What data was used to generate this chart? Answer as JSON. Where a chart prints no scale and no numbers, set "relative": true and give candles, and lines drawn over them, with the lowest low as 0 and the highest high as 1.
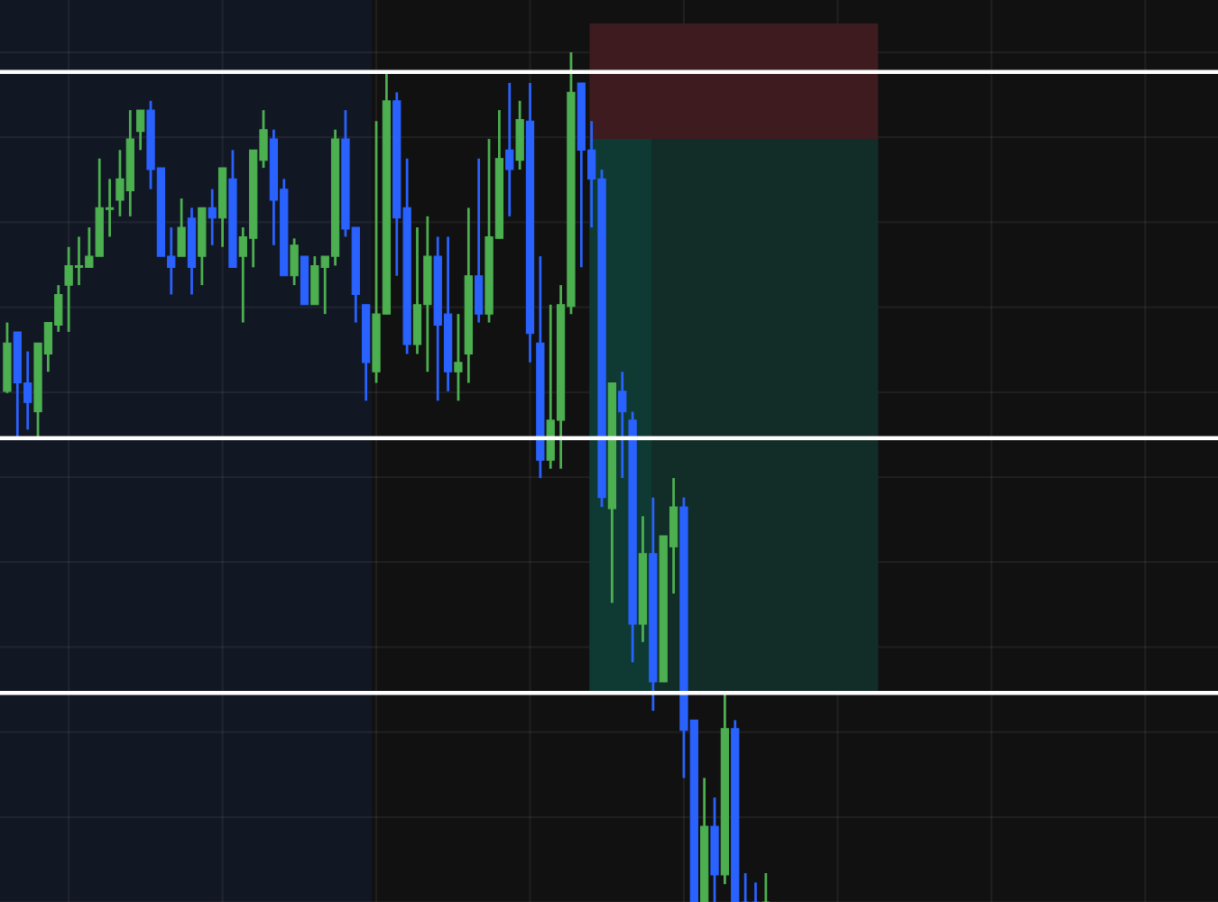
{
  "chart_data": {
    "type": "candlestick",
    "relative": true,
    "tick_labels": false,
    "grid": true,
    "categories": [
      null,
      null,
      null,
      null,
      null,
      null,
      null,
      null,
      null,
      null,
      null,
      null,
      null,
      null,
      null,
      null,
      null,
      null,
      null,
      null,
      null,
      null,
      null,
      null,
      null,
      null,
      null,
      null,
      null,
      null,
      null,
      null,
      null,
      null,
      null,
      null,
      null,
      null,
      null,
      null,
      null,
      null,
      null,
      null,
      null,
      null,
      null,
      null,
      null,
      null,
      null,
      null,
      null,
      null,
      null,
      null,
      null,
      null,
      null,
      null,
      null,
      null,
      null,
      null,
      null,
      null,
      null,
      null,
      null,
      null,
      null,
      null,
      null,
      null,
      null
    ],
    "ohlc": [
      [
        0.601,
        0.682,
        0.599,
        0.658
      ],
      [
        0.671,
        0.671,
        0.546,
        0.611
      ],
      [
        0.611,
        0.648,
        0.556,
        0.588
      ],
      [
        0.577,
        0.658,
        0.546,
        0.658
      ],
      [
        0.645,
        0.682,
        0.624,
        0.682
      ],
      [
        0.679,
        0.726,
        0.671,
        0.715
      ],
      [
        0.726,
        0.771,
        0.671,
        0.749
      ],
      [
        0.747,
        0.783,
        0.726,
        0.749
      ],
      [
        0.747,
        0.794,
        0.747,
        0.76
      ],
      [
        0.76,
        0.875,
        0.76,
        0.817
      ],
      [
        0.815,
        0.851,
        0.783,
        0.817
      ],
      [
        0.826,
        0.885,
        0.807,
        0.851
      ],
      [
        0.837,
        0.932,
        0.807,
        0.898
      ],
      [
        0.907,
        0.932,
        0.885,
        0.932
      ],
      [
        0.932,
        0.943,
        0.839,
        0.862
      ],
      [
        0.864,
        0.864,
        0.76,
        0.76
      ],
      [
        0.76,
        0.794,
        0.715,
        0.747
      ],
      [
        0.76,
        0.828,
        0.76,
        0.794
      ],
      [
        0.805,
        0.817,
        0.715,
        0.747
      ],
      [
        0.76,
        0.817,
        0.726,
        0.817
      ],
      [
        0.817,
        0.839,
        0.773,
        0.805
      ],
      [
        0.805,
        0.864,
        0.771,
        0.864
      ],
      [
        0.851,
        0.885,
        0.747,
        0.747
      ],
      [
        0.76,
        0.794,
        0.682,
        0.783
      ],
      [
        0.781,
        0.885,
        0.747,
        0.885
      ],
      [
        0.873,
        0.932,
        0.864,
        0.909
      ],
      [
        0.898,
        0.909,
        0.773,
        0.826
      ],
      [
        0.839,
        0.851,
        0.737,
        0.737
      ],
      [
        0.737,
        0.781,
        0.726,
        0.773
      ],
      [
        0.76,
        0.76,
        0.703,
        0.703
      ],
      [
        0.703,
        0.76,
        0.703,
        0.749
      ],
      [
        0.747,
        0.76,
        0.692,
        0.76
      ],
      [
        0.76,
        0.909,
        0.749,
        0.898
      ],
      [
        0.898,
        0.932,
        0.783,
        0.792
      ],
      [
        0.794,
        0.794,
        0.682,
        0.715
      ],
      [
        0.703,
        0.703,
        0.59,
        0.635
      ],
      [
        0.624,
        0.919,
        0.611,
        0.692
      ],
      [
        0.692,
        0.977,
        0.692,
        0.943
      ],
      [
        0.943,
        0.953,
        0.737,
        0.805
      ],
      [
        0.817,
        0.875,
        0.645,
        0.656
      ],
      [
        0.656,
        0.794,
        0.645,
        0.703
      ],
      [
        0.703,
        0.807,
        0.624,
        0.76
      ],
      [
        0.76,
        0.783,
        0.59,
        0.679
      ],
      [
        0.692,
        0.783,
        0.601,
        0.624
      ],
      [
        0.624,
        0.692,
        0.59,
        0.635
      ],
      [
        0.645,
        0.817,
        0.611,
        0.737
      ],
      [
        0.737,
        0.875,
        0.682,
        0.692
      ],
      [
        0.692,
        0.898,
        0.682,
        0.783
      ],
      [
        0.781,
        0.932,
        0.781,
        0.875
      ],
      [
        0.885,
        0.964,
        0.807,
        0.862
      ],
      [
        0.873,
        0.943,
        0.862,
        0.921
      ],
      [
        0.919,
        0.964,
        0.635,
        0.669
      ],
      [
        0.658,
        0.76,
        0.499,
        0.52
      ],
      [
        0.52,
        0.703,
        0.51,
        0.567
      ],
      [
        0.567,
        0.726,
        0.51,
        0.703
      ],
      [
        0.701,
        1.0,
        0.692,
        0.953
      ],
      [
        0.964,
        0.964,
        0.747,
        0.885
      ],
      [
        0.885,
        0.919,
        0.794,
        0.851
      ],
      [
        0.851,
        0.862,
        0.465,
        0.476
      ],
      [
        0.463,
        0.611,
        0.352,
        0.611
      ],
      [
        0.601,
        0.624,
        0.499,
        0.577
      ],
      [
        0.567,
        0.577,
        0.282,
        0.327
      ],
      [
        0.327,
        0.454,
        0.306,
        0.41
      ],
      [
        0.41,
        0.476,
        0.225,
        0.259
      ],
      [
        0.259,
        0.431,
        0.259,
        0.431
      ],
      [
        0.418,
        0.499,
        0.363,
        0.465
      ],
      [
        0.465,
        0.476,
        0.146,
        0.202
      ],
      [
        0.214,
        0.214,
        0,
        0
      ],
      [
        0,
        0.146,
        0,
        0.089
      ],
      [
        0.089,
        0.123,
        0,
        0.032
      ],
      [
        0.032,
        0.248,
        0.021,
        0.204
      ],
      [
        0.204,
        0.214,
        0,
        0
      ],
      [
        0,
        0.034,
        0,
        0
      ],
      [
        0,
        0.023,
        0,
        0
      ],
      [
        0,
        0.034,
        0,
        0
      ]
    ],
    "colors": [
      "#4caf50",
      "#2962ff",
      "#2962ff",
      "#4caf50",
      "#4caf50",
      "#4caf50",
      "#4caf50",
      "#4caf50",
      "#4caf50",
      "#4caf50",
      "#4caf50",
      "#4caf50",
      "#4caf50",
      "#4caf50",
      "#2962ff",
      "#2962ff",
      "#2962ff",
      "#4caf50",
      "#2962ff",
      "#4caf50",
      "#2962ff",
      "#4caf50",
      "#2962ff",
      "#4caf50",
      "#4caf50",
      "#4caf50",
      "#2962ff",
      "#2962ff",
      "#4caf50",
      "#2962ff",
      "#4caf50",
      "#4caf50",
      "#4caf50",
      "#2962ff",
      "#2962ff",
      "#2962ff",
      "#4caf50",
      "#4caf50",
      "#2962ff",
      "#2962ff",
      "#4caf50",
      "#4caf50",
      "#2962ff",
      "#2962ff",
      "#4caf50",
      "#4caf50",
      "#2962ff",
      "#4caf50",
      "#4caf50",
      "#2962ff",
      "#4caf50",
      "#2962ff",
      "#2962ff",
      "#4caf50",
      "#4caf50",
      "#4caf50",
      "#2962ff",
      "#2962ff",
      "#2962ff",
      "#4caf50",
      "#2962ff",
      "#2962ff",
      "#4caf50",
      "#2962ff",
      "#4caf50",
      "#4caf50",
      "#2962ff",
      "#2962ff",
      "#4caf50",
      "#2962ff",
      "#4caf50",
      "#2962ff",
      "#2962ff",
      "#2962ff",
      "#4caf50"
    ],
    "ref_lines": [
      {
        "axis": "y",
        "value": 0.977,
        "color": "#ffffff"
      },
      {
        "axis": "y",
        "value": 0.546,
        "color": "#ffffff"
      },
      {
        "axis": "y",
        "value": 0.246,
        "color": "#ffffff"
      }
    ]
  }
}
